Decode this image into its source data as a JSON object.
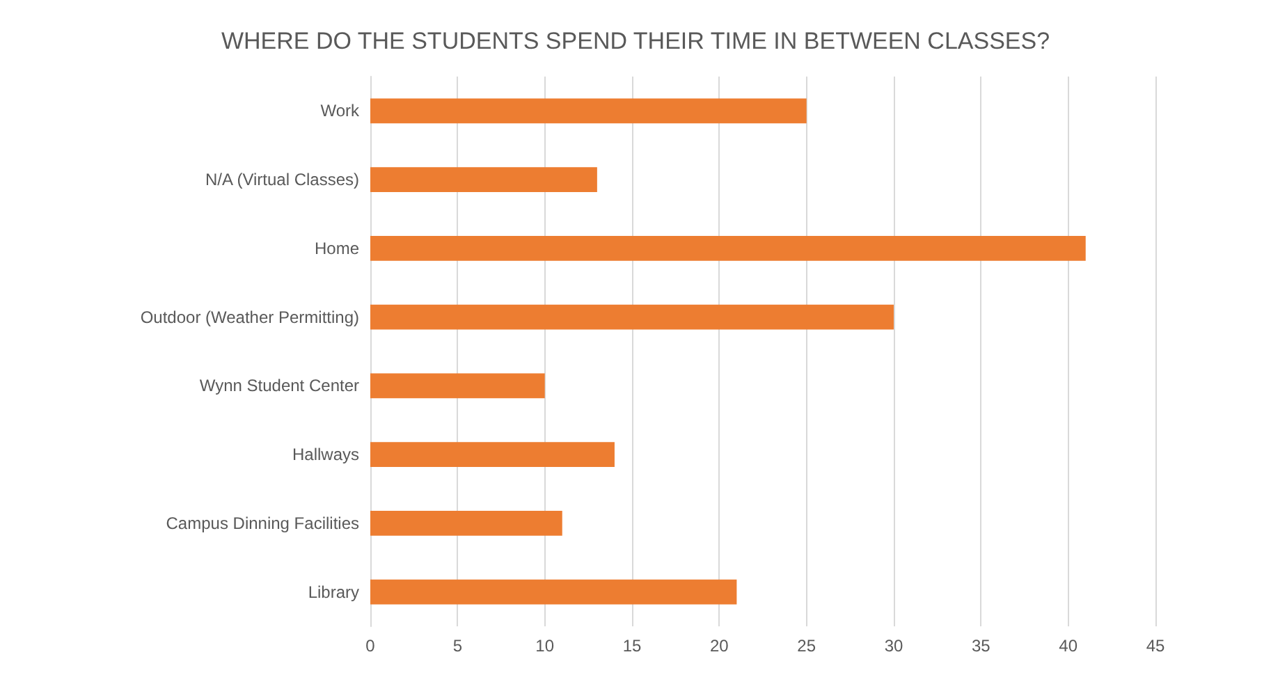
{
  "chart_data": {
    "type": "bar",
    "orientation": "horizontal",
    "title": "WHERE DO THE STUDENTS SPEND THEIR TIME IN BETWEEN CLASSES?",
    "categories": [
      "Work",
      "N/A (Virtual Classes)",
      "Home",
      "Outdoor (Weather Permitting)",
      "Wynn Student Center",
      "Hallways",
      "Campus Dinning Facilities",
      "Library"
    ],
    "values": [
      25,
      13,
      41,
      30,
      10,
      14,
      11,
      21
    ],
    "color": "#ed7d31",
    "xlim": [
      0,
      45
    ],
    "xticks": [
      0,
      5,
      10,
      15,
      20,
      25,
      30,
      35,
      40,
      45
    ],
    "grid": "x"
  }
}
